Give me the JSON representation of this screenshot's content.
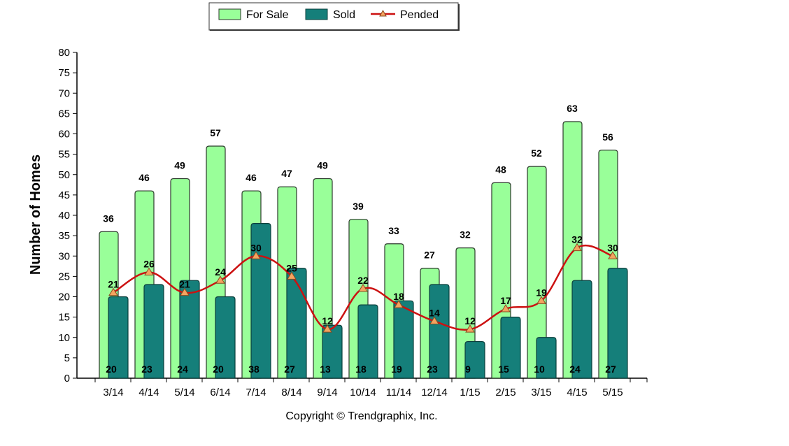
{
  "chart_data": {
    "type": "bar",
    "categories": [
      "3/14",
      "4/14",
      "5/14",
      "6/14",
      "7/14",
      "8/14",
      "9/14",
      "10/14",
      "11/14",
      "12/14",
      "1/15",
      "2/15",
      "3/15",
      "4/15",
      "5/15"
    ],
    "series": [
      {
        "name": "For Sale",
        "kind": "bar",
        "color": "#99ff99",
        "values": [
          36,
          46,
          49,
          57,
          46,
          47,
          49,
          39,
          33,
          27,
          32,
          48,
          52,
          63,
          56
        ]
      },
      {
        "name": "Sold",
        "kind": "bar",
        "color": "#157f7a",
        "values": [
          20,
          23,
          24,
          20,
          38,
          27,
          13,
          18,
          19,
          23,
          9,
          15,
          10,
          24,
          27
        ]
      },
      {
        "name": "Pended",
        "kind": "line",
        "color": "#cc1111",
        "marker_color": "#f4a460",
        "values": [
          21,
          26,
          21,
          24,
          30,
          25,
          12,
          22,
          18,
          14,
          12,
          17,
          19,
          32,
          30
        ]
      }
    ],
    "ylabel": "Number of Homes",
    "ylim": [
      0,
      80
    ],
    "yticks": [
      0,
      5,
      10,
      15,
      20,
      25,
      30,
      35,
      40,
      45,
      50,
      55,
      60,
      65,
      70,
      75,
      80
    ],
    "legend": "top-center",
    "grid": false
  },
  "copyright": "Copyright © Trendgraphix, Inc."
}
